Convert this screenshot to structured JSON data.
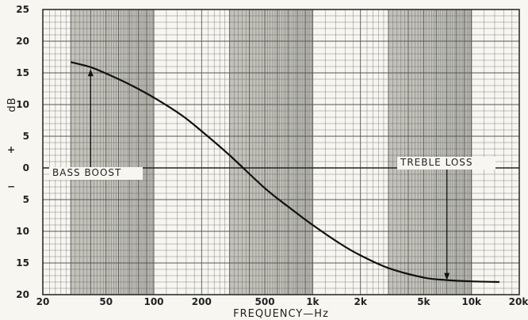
{
  "chart_data": {
    "type": "line",
    "title": "",
    "xlabel": "FREQUENCY—Hz",
    "ylabel": "dB",
    "y_sign_labels": [
      "+",
      "−"
    ],
    "xscale": "log",
    "xlim": [
      20,
      20000
    ],
    "ylim": [
      -20,
      25
    ],
    "grid": true,
    "x_tick_values": [
      20,
      50,
      100,
      200,
      500,
      1000,
      2000,
      5000,
      10000,
      20000
    ],
    "x_tick_labels": [
      "20",
      "50",
      "100",
      "200",
      "500",
      "1k",
      "2k",
      "5k",
      "10k",
      "20k"
    ],
    "y_tick_values": [
      25,
      20,
      15,
      10,
      5,
      0,
      -5,
      -10,
      -15,
      -20
    ],
    "y_tick_labels": [
      "25",
      "20",
      "15",
      "10",
      "5",
      "0",
      "5",
      "10",
      "15",
      "20"
    ],
    "series": [
      {
        "x": [
          30,
          40,
          50,
          70,
          100,
          150,
          200,
          300,
          500,
          700,
          1000,
          1500,
          2000,
          3000,
          5000,
          7000,
          10000,
          15000
        ],
        "y": [
          16.7,
          15.9,
          14.9,
          13.2,
          11.1,
          8.3,
          5.8,
          2.0,
          -3.2,
          -6.1,
          -9.0,
          -12.0,
          -13.8,
          -15.8,
          -17.3,
          -17.7,
          -17.9,
          -18.0
        ]
      }
    ],
    "annotations": [
      {
        "text": "BASS BOOST",
        "arrow_x": 40,
        "arrow_from_y": 0,
        "arrow_to_y": 15.6
      },
      {
        "text": "TREBLE LOSS",
        "arrow_x": 7000,
        "arrow_from_y": 0,
        "arrow_to_y": -17.7
      }
    ],
    "colors": {
      "line": "#111111",
      "band": "#b8b8b0",
      "grid": "#555555",
      "background": "#f7f6f1"
    }
  }
}
